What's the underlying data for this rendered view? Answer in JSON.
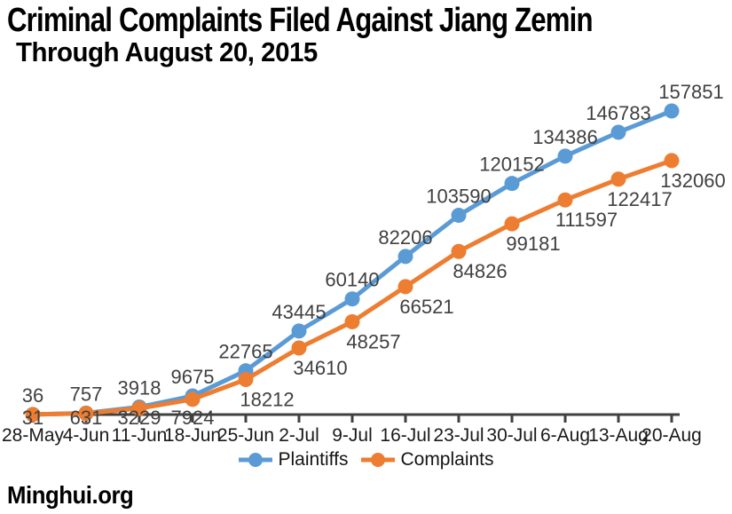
{
  "title": "Criminal Complaints Filed Against Jiang Zemin",
  "subtitle": "Through August 20, 2015",
  "source": "Minghui.org",
  "colors": {
    "plaintiffs": "#5B9BD5",
    "complaints": "#ED7D31",
    "axis": "#404040",
    "data_label": "#404040",
    "tick_label": "#1a1a1a"
  },
  "chart_data": {
    "type": "line",
    "title": "Criminal Complaints Filed Against Jiang Zemin",
    "subtitle": "Through August 20, 2015",
    "categories": [
      "28-May",
      "4-Jun",
      "11-Jun",
      "18-Jun",
      "25-Jun",
      "2-Jul",
      "9-Jul",
      "16-Jul",
      "23-Jul",
      "30-Jul",
      "6-Aug",
      "13-Aug",
      "20-Aug"
    ],
    "series": [
      {
        "name": "Plaintiffs",
        "color": "#5B9BD5",
        "label_position": "above",
        "values": [
          36,
          757,
          3918,
          9675,
          22765,
          43445,
          60140,
          82206,
          103590,
          120152,
          134386,
          146783,
          157851
        ]
      },
      {
        "name": "Complaints",
        "color": "#ED7D31",
        "label_position": "below",
        "values": [
          31,
          631,
          3229,
          7924,
          18212,
          34610,
          48257,
          66521,
          84826,
          99181,
          111597,
          122417,
          132060
        ]
      }
    ],
    "ylim": [
      0,
      157851
    ],
    "grid": false,
    "y_axis_visible": false,
    "data_labels": true,
    "legend_position": "bottom"
  }
}
